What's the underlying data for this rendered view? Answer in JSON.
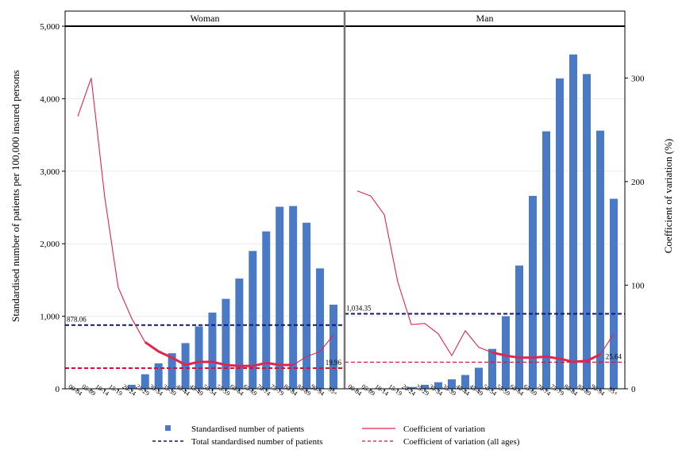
{
  "chart_data": {
    "type": "bar",
    "panels": [
      {
        "title": "Woman",
        "categories": [
          "00-04",
          "05-09",
          "10-14",
          "15-19",
          "20-24",
          "25-29",
          "30-34",
          "35-39",
          "40-44",
          "45-49",
          "50-54",
          "55-59",
          "60-64",
          "65-69",
          "70-74",
          "75-79",
          "80-84",
          "85-89",
          "90-94",
          "95+"
        ],
        "bars": [
          0,
          0,
          0,
          5,
          55,
          200,
          350,
          490,
          630,
          860,
          1050,
          1240,
          1520,
          1900,
          2170,
          2510,
          2520,
          2290,
          1660,
          1160
        ],
        "cv_line": [
          263,
          300,
          185,
          98,
          68,
          45,
          36,
          30,
          23,
          26,
          26,
          23,
          22,
          22,
          25,
          23,
          23,
          31,
          36,
          52
        ],
        "cv_line_bold_from": "25-29",
        "cv_line_bold_to": "80-84",
        "total_patients": 878.06,
        "total_label": "878.06",
        "cv_all_ages": 19.96,
        "cv_all_ages_label": "19.96"
      },
      {
        "title": "Man",
        "categories": [
          "00-04",
          "05-09",
          "10-14",
          "15-19",
          "20-24",
          "25-29",
          "30-34",
          "35-39",
          "40-44",
          "45-49",
          "50-54",
          "55-59",
          "60-64",
          "65-69",
          "70-74",
          "75-79",
          "80-84",
          "85-89",
          "90-94",
          "95+"
        ],
        "bars": [
          0,
          0,
          0,
          5,
          25,
          55,
          90,
          130,
          190,
          290,
          550,
          1000,
          1700,
          2660,
          3550,
          4280,
          4610,
          4340,
          3560,
          2620
        ],
        "cv_line": [
          191,
          186,
          168,
          103,
          62,
          63,
          53,
          32,
          56,
          40,
          35,
          32,
          30,
          30,
          31,
          29,
          26,
          27,
          33,
          53
        ],
        "cv_line_bold_from": "50-54",
        "cv_line_bold_to": "90-94",
        "total_patients": 1034.35,
        "total_label": "1,034.35",
        "cv_all_ages": 25.64,
        "cv_all_ages_label": "25.64"
      }
    ],
    "y_left_label": "Standardised number of patients per 100,000 insured persons",
    "y_left_ticks": [
      "0",
      "1,000",
      "2,000",
      "3,000",
      "4,000",
      "5,000"
    ],
    "y_left_tick_values": [
      0,
      1000,
      2000,
      3000,
      4000,
      5000
    ],
    "y_left_lim": [
      0,
      5000
    ],
    "y_right_label": "Coefficient of variation (%)",
    "y_right_ticks": [
      "0",
      "100",
      "200",
      "300"
    ],
    "y_right_tick_values": [
      0,
      100,
      200,
      300
    ],
    "y_right_lim": [
      0,
      350
    ],
    "legend": {
      "bars": "Standardised number of patients",
      "cv": "Coefficient of variation",
      "total": "Total standardised number of patients",
      "cv_all": "Coefficient of variation (all ages)"
    },
    "colors": {
      "bar": "#4a7ac6",
      "cv": "#e0264f",
      "total": "#15166e",
      "cv_all": "#d3103e"
    }
  }
}
